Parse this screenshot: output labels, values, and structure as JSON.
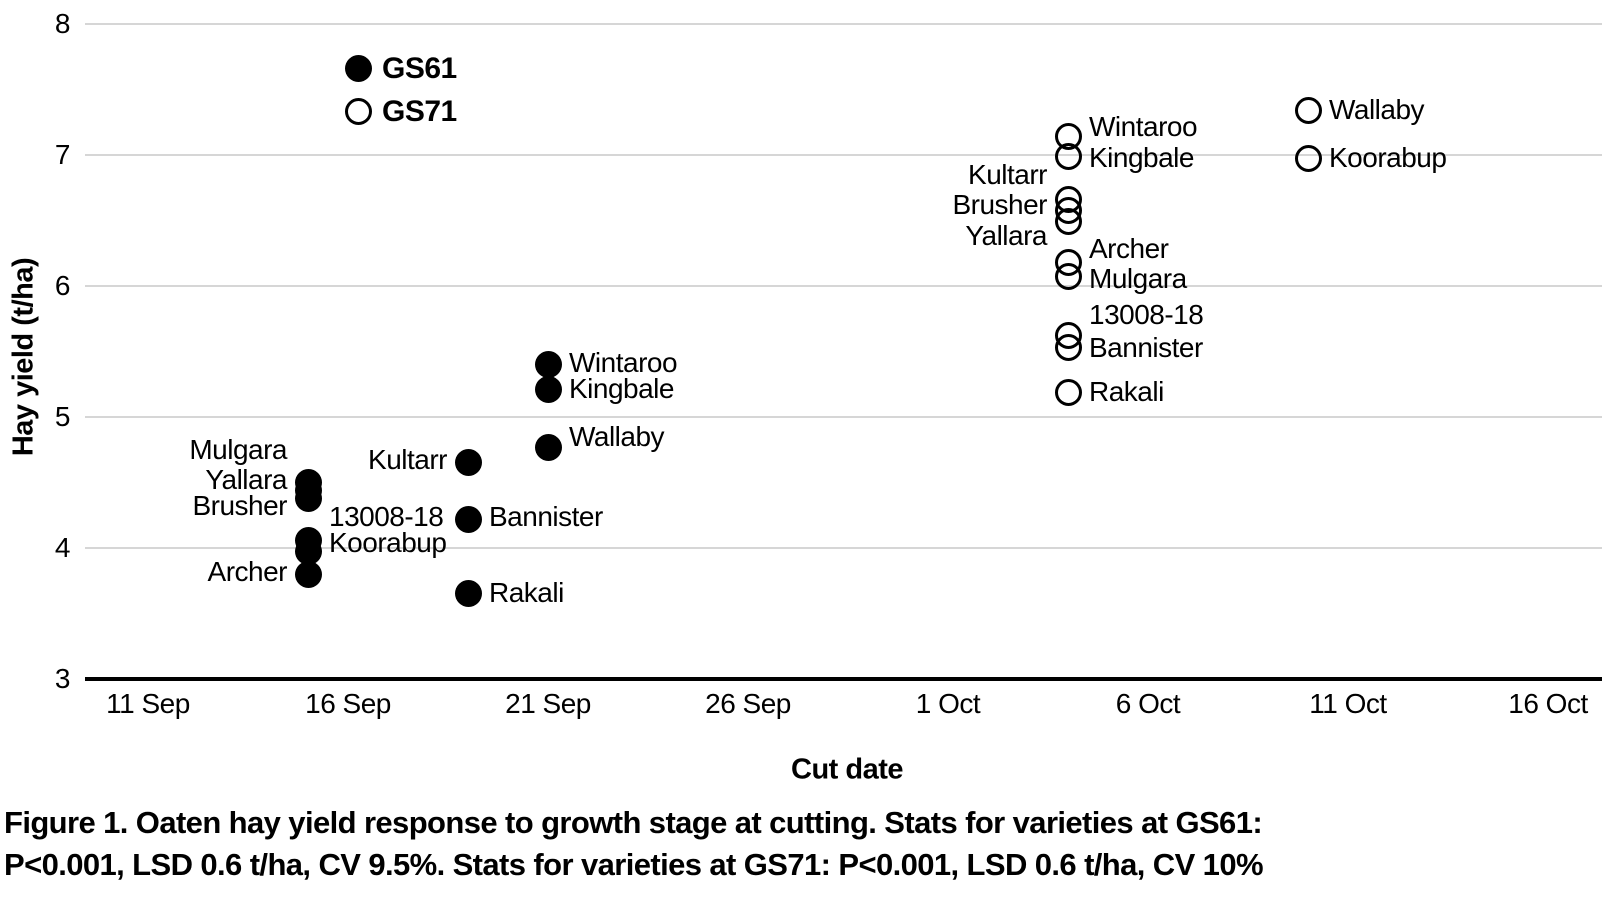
{
  "figure": {
    "caption_line1": "Figure 1. Oaten hay yield response to growth stage at cutting. Stats for varieties at GS61:",
    "caption_line2": "P<0.001, LSD 0.6 t/ha, CV 9.5%. Stats for varieties at GS71: P<0.001, LSD 0.6 t/ha, CV 10%"
  },
  "chart_data": {
    "type": "scatter",
    "title": "",
    "xlabel": "Cut date",
    "ylabel": "Hay yield (t/ha)",
    "x_axis": {
      "tick_labels": [
        "11 Sep",
        "16 Sep",
        "21 Sep",
        "26 Sep",
        "1 Oct",
        "6 Oct",
        "11 Oct",
        "16 Oct"
      ],
      "tick_days": [
        0,
        5,
        10,
        15,
        20,
        25,
        30,
        35
      ],
      "start_date": "11 Sep"
    },
    "y_axis": {
      "min": 3,
      "max": 8,
      "ticks": [
        3,
        4,
        5,
        6,
        7,
        8
      ],
      "gridlines": true
    },
    "colors": {
      "marker": "#000000",
      "gridline": "#d6d6d6",
      "axis": "#000000",
      "background": "#ffffff",
      "text": "#000000"
    },
    "legend": [
      {
        "label": "GS61",
        "marker": "filled"
      },
      {
        "label": "GS71",
        "marker": "open"
      }
    ],
    "legend_pos": {
      "day": 5.25,
      "values": [
        7.66,
        7.33
      ]
    },
    "series": [
      {
        "name": "GS61",
        "marker": "filled",
        "points": [
          {
            "variety": "Mulgara",
            "date": "15 Sep",
            "day": 4,
            "value": 4.5
          },
          {
            "variety": "Yallara",
            "date": "15 Sep",
            "day": 4,
            "value": 4.44
          },
          {
            "variety": "Brusher",
            "date": "15 Sep",
            "day": 4,
            "value": 4.38
          },
          {
            "variety": "13008-18",
            "date": "15 Sep",
            "day": 4,
            "value": 4.06
          },
          {
            "variety": "Koorabup",
            "date": "15 Sep",
            "day": 4,
            "value": 3.97
          },
          {
            "variety": "Archer",
            "date": "15 Sep",
            "day": 4,
            "value": 3.8
          },
          {
            "variety": "Kultarr",
            "date": "19 Sep",
            "day": 8,
            "value": 4.65
          },
          {
            "variety": "Bannister",
            "date": "19 Sep",
            "day": 8,
            "value": 4.22
          },
          {
            "variety": "Rakali",
            "date": "19 Sep",
            "day": 8,
            "value": 3.65
          },
          {
            "variety": "Wintaroo",
            "date": "21 Sep",
            "day": 10,
            "value": 5.4
          },
          {
            "variety": "Kingbale",
            "date": "21 Sep",
            "day": 10,
            "value": 5.21
          },
          {
            "variety": "Wallaby",
            "date": "21 Sep",
            "day": 10,
            "value": 4.77
          }
        ]
      },
      {
        "name": "GS71",
        "marker": "open",
        "points": [
          {
            "variety": "Wintaroo",
            "date": "4 Oct",
            "day": 23,
            "value": 7.14
          },
          {
            "variety": "Kingbale",
            "date": "4 Oct",
            "day": 23,
            "value": 6.99
          },
          {
            "variety": "Kultarr",
            "date": "4 Oct",
            "day": 23,
            "value": 6.66
          },
          {
            "variety": "Brusher",
            "date": "4 Oct",
            "day": 23,
            "value": 6.58
          },
          {
            "variety": "Yallara",
            "date": "4 Oct",
            "day": 23,
            "value": 6.49
          },
          {
            "variety": "Archer",
            "date": "4 Oct",
            "day": 23,
            "value": 6.18
          },
          {
            "variety": "Mulgara",
            "date": "4 Oct",
            "day": 23,
            "value": 6.07
          },
          {
            "variety": "13008-18",
            "date": "4 Oct",
            "day": 23,
            "value": 5.62
          },
          {
            "variety": "Bannister",
            "date": "4 Oct",
            "day": 23,
            "value": 5.53
          },
          {
            "variety": "Rakali",
            "date": "4 Oct",
            "day": 23,
            "value": 5.19
          },
          {
            "variety": "Wallaby",
            "date": "10 Oct",
            "day": 29,
            "value": 7.34
          },
          {
            "variety": "Koorabup",
            "date": "10 Oct",
            "day": 29,
            "value": 6.97
          }
        ]
      }
    ],
    "labels": [
      {
        "series": "GS61",
        "text": "Mulgara",
        "day": 4,
        "value": 4.75,
        "side": "left"
      },
      {
        "series": "GS61",
        "text": "Yallara",
        "day": 4,
        "value": 4.52,
        "side": "left"
      },
      {
        "series": "GS61",
        "text": "Brusher",
        "day": 4,
        "value": 4.32,
        "side": "left"
      },
      {
        "series": "GS61",
        "text": "13008-18",
        "day": 4,
        "value": 4.24,
        "side": "right"
      },
      {
        "series": "GS61",
        "text": "Koorabup",
        "day": 4,
        "value": 4.04,
        "side": "right"
      },
      {
        "series": "GS61",
        "text": "Archer",
        "day": 4,
        "value": 3.82,
        "side": "left"
      },
      {
        "series": "GS61",
        "text": "Kultarr",
        "day": 8,
        "value": 4.67,
        "side": "left"
      },
      {
        "series": "GS61",
        "text": "Bannister",
        "day": 8,
        "value": 4.24,
        "side": "right"
      },
      {
        "series": "GS61",
        "text": "Rakali",
        "day": 8,
        "value": 3.66,
        "side": "right"
      },
      {
        "series": "GS61",
        "text": "Wintaroo",
        "day": 10,
        "value": 5.41,
        "side": "right"
      },
      {
        "series": "GS61",
        "text": "Kingbale",
        "day": 10,
        "value": 5.21,
        "side": "right"
      },
      {
        "series": "GS61",
        "text": "Wallaby",
        "day": 10,
        "value": 4.85,
        "side": "right"
      },
      {
        "series": "GS71",
        "text": "Kultarr",
        "day": 23,
        "value": 6.85,
        "side": "left"
      },
      {
        "series": "GS71",
        "text": "Brusher",
        "day": 23,
        "value": 6.62,
        "side": "left"
      },
      {
        "series": "GS71",
        "text": "Yallara",
        "day": 23,
        "value": 6.38,
        "side": "left"
      },
      {
        "series": "GS71",
        "text": "Wintaroo",
        "day": 23,
        "value": 7.21,
        "side": "right"
      },
      {
        "series": "GS71",
        "text": "Kingbale",
        "day": 23,
        "value": 6.98,
        "side": "right"
      },
      {
        "series": "GS71",
        "text": "Archer",
        "day": 23,
        "value": 6.28,
        "side": "right"
      },
      {
        "series": "GS71",
        "text": "Mulgara",
        "day": 23,
        "value": 6.05,
        "side": "right"
      },
      {
        "series": "GS71",
        "text": "13008-18",
        "day": 23,
        "value": 5.78,
        "side": "right"
      },
      {
        "series": "GS71",
        "text": "Bannister",
        "day": 23,
        "value": 5.53,
        "side": "right"
      },
      {
        "series": "GS71",
        "text": "Rakali",
        "day": 23,
        "value": 5.19,
        "side": "right"
      },
      {
        "series": "GS71",
        "text": "Wallaby",
        "day": 29,
        "value": 7.34,
        "side": "right"
      },
      {
        "series": "GS71",
        "text": "Koorabup",
        "day": 29,
        "value": 6.98,
        "side": "right"
      }
    ]
  }
}
